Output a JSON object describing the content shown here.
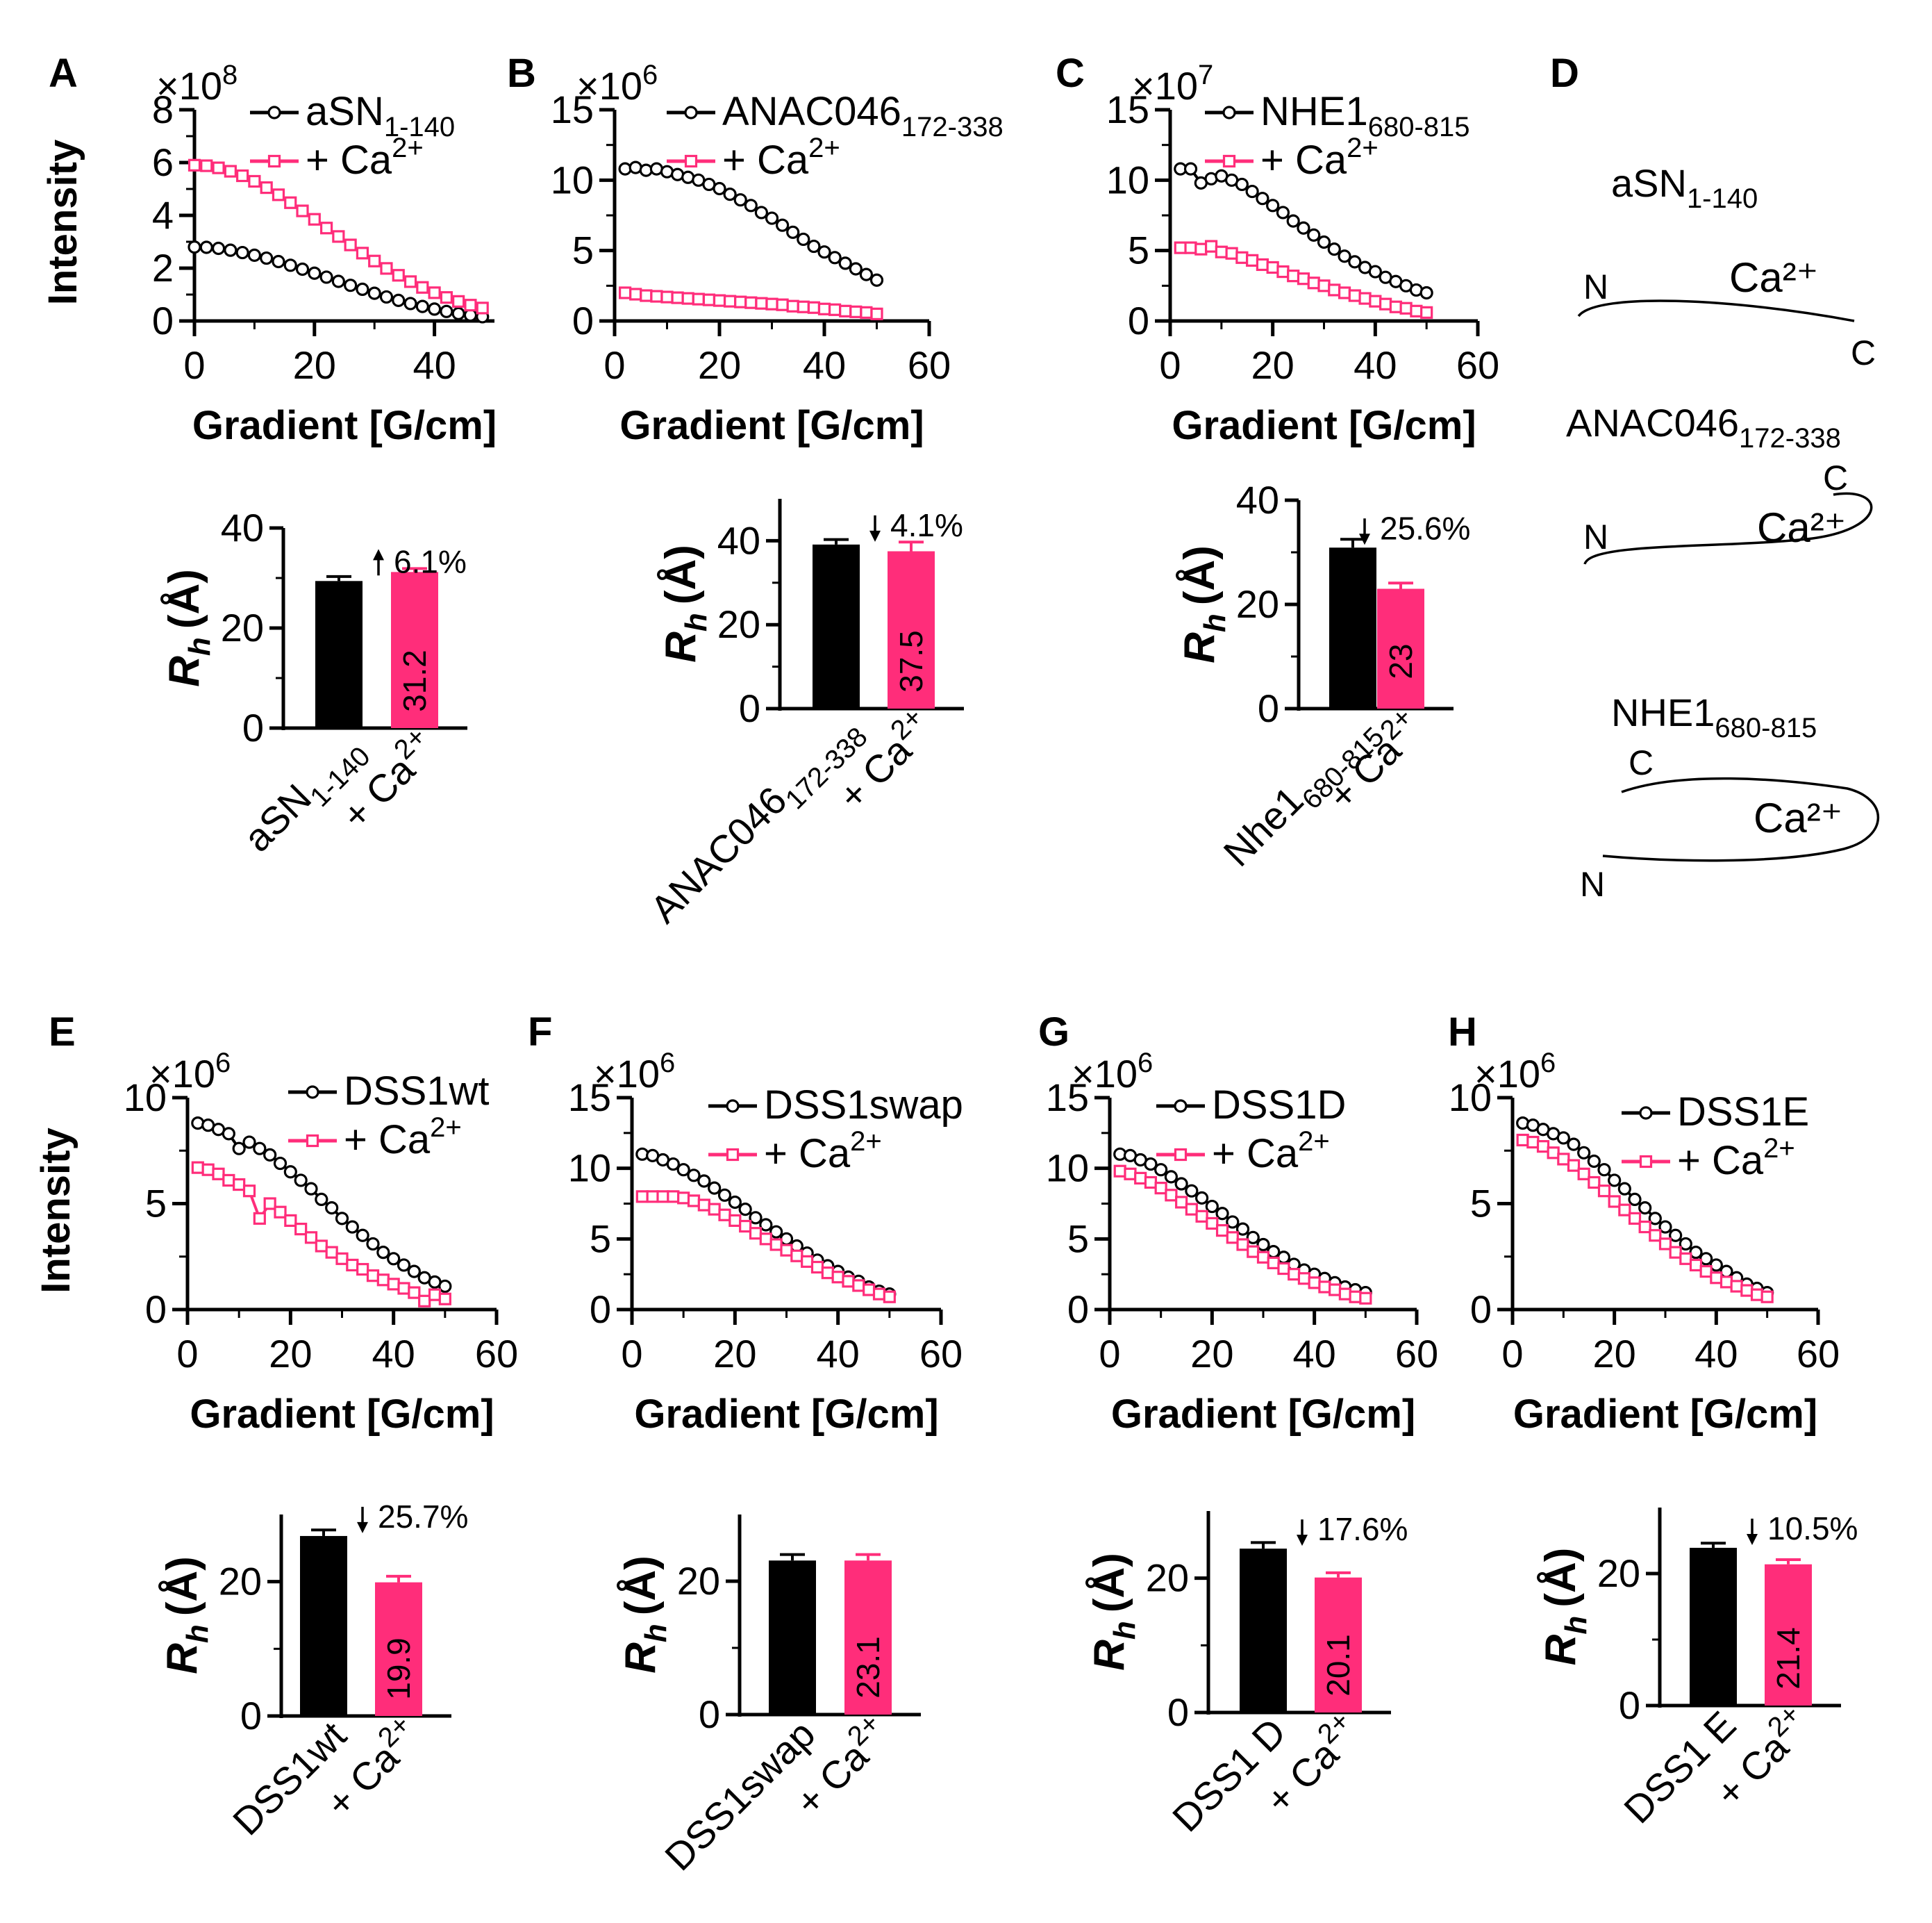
{
  "colors": {
    "control": "#000000",
    "calcium": "#ff2d7a"
  },
  "chart_data": [
    {
      "panel": "A",
      "type": "scatter",
      "xlabel": "Gradient [G/cm]",
      "ylabel": "Intensity",
      "exponent": "×10",
      "exponent_power": "8",
      "xlim": [
        0,
        50
      ],
      "ylim": [
        0,
        8
      ],
      "xticks": [
        "0",
        "20",
        "40"
      ],
      "yticks": [
        "0",
        "2",
        "4",
        "6",
        "8"
      ],
      "x": [
        0,
        2,
        4,
        6,
        8,
        10,
        12,
        14,
        16,
        18,
        20,
        22,
        24,
        26,
        28,
        30,
        32,
        34,
        36,
        38,
        40,
        42,
        44,
        46,
        48
      ],
      "series": [
        {
          "name": "aSN",
          "name_sub": "1-140",
          "values": [
            2.8,
            2.79,
            2.75,
            2.68,
            2.59,
            2.49,
            2.38,
            2.25,
            2.11,
            1.96,
            1.81,
            1.66,
            1.5,
            1.35,
            1.2,
            1.05,
            0.91,
            0.78,
            0.66,
            0.55,
            0.45,
            0.36,
            0.28,
            0.22,
            0.16
          ]
        },
        {
          "name": "+ Ca",
          "name_sup": "2+",
          "values": [
            5.9,
            5.88,
            5.8,
            5.67,
            5.5,
            5.29,
            5.05,
            4.78,
            4.48,
            4.17,
            3.85,
            3.52,
            3.2,
            2.88,
            2.57,
            2.27,
            1.99,
            1.73,
            1.49,
            1.27,
            1.07,
            0.89,
            0.74,
            0.6,
            0.49
          ]
        }
      ]
    },
    {
      "panel": "B",
      "type": "scatter",
      "xlabel": "Gradient [G/cm]",
      "ylabel": "",
      "exponent": "×10",
      "exponent_power": "6",
      "xlim": [
        0,
        60
      ],
      "ylim": [
        0,
        15
      ],
      "xticks": [
        "0",
        "20",
        "40",
        "60"
      ],
      "yticks": [
        "0",
        "5",
        "10",
        "15"
      ],
      "x": [
        2,
        4,
        6,
        8,
        10,
        12,
        14,
        16,
        18,
        20,
        22,
        24,
        26,
        28,
        30,
        32,
        34,
        36,
        38,
        40,
        42,
        44,
        46,
        48,
        50
      ],
      "series": [
        {
          "name": "ANAC046",
          "name_sub": "172-338",
          "values": [
            10.8,
            10.9,
            10.7,
            10.8,
            10.6,
            10.4,
            10.2,
            10,
            9.7,
            9.4,
            9,
            8.6,
            8.2,
            7.7,
            7.3,
            6.8,
            6.3,
            5.8,
            5.3,
            4.9,
            4.5,
            4.1,
            3.7,
            3.3,
            2.9
          ]
        },
        {
          "name": "+ Ca",
          "name_sup": "2+",
          "values": [
            2,
            1.9,
            1.8,
            1.75,
            1.7,
            1.65,
            1.6,
            1.55,
            1.5,
            1.45,
            1.4,
            1.35,
            1.3,
            1.25,
            1.2,
            1.15,
            1.05,
            1,
            0.95,
            0.85,
            0.8,
            0.7,
            0.65,
            0.6,
            0.5
          ]
        }
      ]
    },
    {
      "panel": "C",
      "type": "scatter",
      "xlabel": "Gradient [G/cm]",
      "ylabel": "",
      "exponent": "×10",
      "exponent_power": "7",
      "xlim": [
        0,
        60
      ],
      "ylim": [
        0,
        15
      ],
      "xticks": [
        "0",
        "20",
        "40",
        "60"
      ],
      "yticks": [
        "0",
        "5",
        "10",
        "15"
      ],
      "x": [
        2,
        4,
        6,
        8,
        10,
        12,
        14,
        16,
        18,
        20,
        22,
        24,
        26,
        28,
        30,
        32,
        34,
        36,
        38,
        40,
        42,
        44,
        46,
        48,
        50
      ],
      "series": [
        {
          "name": "NHE1",
          "name_sub": "680-815",
          "values": [
            10.8,
            10.8,
            9.8,
            10.1,
            10.3,
            10,
            9.7,
            9.2,
            8.7,
            8.2,
            7.7,
            7.1,
            6.6,
            6.1,
            5.6,
            5.1,
            4.6,
            4.2,
            3.8,
            3.5,
            3.1,
            2.8,
            2.5,
            2.2,
            2
          ]
        },
        {
          "name": "+ Ca",
          "name_sup": "2+",
          "values": [
            5.2,
            5.2,
            5.1,
            5.3,
            4.9,
            4.8,
            4.5,
            4.3,
            4,
            3.8,
            3.5,
            3.2,
            3,
            2.7,
            2.5,
            2.2,
            2,
            1.8,
            1.6,
            1.4,
            1.2,
            1,
            0.9,
            0.7,
            0.6
          ]
        }
      ]
    },
    {
      "panel": "E",
      "type": "scatter",
      "xlabel": "Gradient [G/cm]",
      "ylabel": "Intensity",
      "exponent": "×10",
      "exponent_power": "6",
      "xlim": [
        0,
        60
      ],
      "ylim": [
        0,
        10
      ],
      "xticks": [
        "0",
        "20",
        "40",
        "60"
      ],
      "yticks": [
        "0",
        "5",
        "10"
      ],
      "x": [
        2,
        4,
        6,
        8,
        10,
        12,
        14,
        16,
        18,
        20,
        22,
        24,
        26,
        28,
        30,
        32,
        34,
        36,
        38,
        40,
        42,
        44,
        46,
        48,
        50
      ],
      "series": [
        {
          "name": "DSS1wt",
          "values": [
            8.8,
            8.7,
            8.5,
            8.3,
            7.6,
            7.9,
            7.6,
            7.3,
            6.9,
            6.5,
            6.1,
            5.7,
            5.2,
            4.8,
            4.3,
            3.9,
            3.5,
            3.1,
            2.7,
            2.4,
            2.1,
            1.8,
            1.5,
            1.3,
            1.1
          ]
        },
        {
          "name": "+ Ca",
          "name_sup": "2+",
          "values": [
            6.7,
            6.6,
            6.4,
            6.1,
            5.9,
            5.6,
            4.3,
            5,
            4.6,
            4.2,
            3.8,
            3.4,
            3,
            2.7,
            2.4,
            2.1,
            1.9,
            1.6,
            1.4,
            1.2,
            1,
            0.8,
            0.4,
            0.7,
            0.5
          ]
        }
      ]
    },
    {
      "panel": "F",
      "type": "scatter",
      "xlabel": "Gradient [G/cm]",
      "ylabel": "",
      "exponent": "×10",
      "exponent_power": "6",
      "xlim": [
        0,
        60
      ],
      "ylim": [
        0,
        15
      ],
      "xticks": [
        "0",
        "20",
        "40",
        "60"
      ],
      "yticks": [
        "0",
        "5",
        "10",
        "15"
      ],
      "x": [
        2,
        4,
        6,
        8,
        10,
        12,
        14,
        16,
        18,
        20,
        22,
        24,
        26,
        28,
        30,
        32,
        34,
        36,
        38,
        40,
        42,
        44,
        46,
        48,
        50
      ],
      "series": [
        {
          "name": "DSS1swap",
          "values": [
            11,
            10.9,
            10.6,
            10.3,
            9.9,
            9.5,
            9.1,
            8.6,
            8.1,
            7.6,
            7.1,
            6.5,
            6,
            5.5,
            5,
            4.5,
            4,
            3.5,
            3.1,
            2.7,
            2.3,
            2,
            1.6,
            1.3,
            1.1
          ]
        },
        {
          "name": "+ Ca",
          "name_sup": "2+",
          "values": [
            8,
            8,
            8,
            8,
            7.9,
            7.7,
            7.4,
            7.1,
            6.7,
            6.3,
            5.9,
            5.4,
            5,
            4.6,
            4.2,
            3.8,
            3.4,
            3,
            2.6,
            2.3,
            2,
            1.7,
            1.4,
            1.1,
            0.9
          ]
        }
      ]
    },
    {
      "panel": "G",
      "type": "scatter",
      "xlabel": "Gradient [G/cm]",
      "ylabel": "",
      "exponent": "×10",
      "exponent_power": "6",
      "xlim": [
        0,
        60
      ],
      "ylim": [
        0,
        15
      ],
      "xticks": [
        "0",
        "20",
        "40",
        "60"
      ],
      "yticks": [
        "0",
        "5",
        "10",
        "15"
      ],
      "x": [
        2,
        4,
        6,
        8,
        10,
        12,
        14,
        16,
        18,
        20,
        22,
        24,
        26,
        28,
        30,
        32,
        34,
        36,
        38,
        40,
        42,
        44,
        46,
        48,
        50
      ],
      "series": [
        {
          "name": "DSS1D",
          "values": [
            11,
            10.9,
            10.6,
            10.3,
            9.9,
            9.4,
            8.9,
            8.4,
            7.9,
            7.3,
            6.8,
            6.2,
            5.7,
            5.1,
            4.6,
            4.1,
            3.7,
            3.2,
            2.8,
            2.5,
            2.2,
            1.9,
            1.6,
            1.4,
            1.2
          ]
        },
        {
          "name": "+ Ca",
          "name_sup": "2+",
          "values": [
            9.8,
            9.6,
            9.3,
            9,
            8.6,
            8.1,
            7.6,
            7.1,
            6.6,
            6.1,
            5.6,
            5.1,
            4.6,
            4.1,
            3.7,
            3.3,
            2.9,
            2.5,
            2.2,
            1.9,
            1.6,
            1.4,
            1.1,
            0.9,
            0.8
          ]
        }
      ]
    },
    {
      "panel": "H",
      "type": "scatter",
      "xlabel": "Gradient [G/cm]",
      "ylabel": "",
      "exponent": "×10",
      "exponent_power": "6",
      "xlim": [
        0,
        60
      ],
      "ylim": [
        0,
        10
      ],
      "xticks": [
        "0",
        "20",
        "40",
        "60"
      ],
      "yticks": [
        "0",
        "5",
        "10"
      ],
      "x": [
        2,
        4,
        6,
        8,
        10,
        12,
        14,
        16,
        18,
        20,
        22,
        24,
        26,
        28,
        30,
        32,
        34,
        36,
        38,
        40,
        42,
        44,
        46,
        48,
        50
      ],
      "series": [
        {
          "name": "DSS1E",
          "values": [
            8.8,
            8.7,
            8.5,
            8.3,
            8.1,
            7.8,
            7.4,
            7,
            6.6,
            6.1,
            5.7,
            5.2,
            4.8,
            4.3,
            3.9,
            3.5,
            3.1,
            2.7,
            2.4,
            2.1,
            1.8,
            1.5,
            1.2,
            1,
            0.8
          ]
        },
        {
          "name": "+ Ca",
          "name_sup": "2+",
          "values": [
            8,
            7.9,
            7.7,
            7.4,
            7.1,
            6.8,
            6.4,
            6,
            5.6,
            5.1,
            4.7,
            4.3,
            3.9,
            3.5,
            3.1,
            2.7,
            2.4,
            2.1,
            1.8,
            1.5,
            1.3,
            1.1,
            0.9,
            0.7,
            0.6
          ]
        }
      ]
    },
    {
      "panel": "A-bar",
      "type": "bar",
      "ylabel": "R",
      "ylabel_sub": "h",
      "ylabel_unit": "(Å)",
      "ylim": [
        0,
        40
      ],
      "yticks": [
        "0",
        "20",
        "40"
      ],
      "categories": [
        {
          "main": "aSN",
          "sub": "1-140"
        },
        {
          "main": "+ Ca",
          "sup": "2+"
        }
      ],
      "values": [
        29.4,
        31.2
      ],
      "errors": [
        0.9,
        0.7
      ],
      "change": "6.1%",
      "direction": "up"
    },
    {
      "panel": "B-bar",
      "type": "bar",
      "ylabel": "R",
      "ylabel_sub": "h",
      "ylabel_unit": "(Å)",
      "ylim": [
        0,
        50
      ],
      "yticks": [
        "0",
        "20",
        "40"
      ],
      "categories": [
        {
          "main": "ANAC046",
          "sub": "172-338"
        },
        {
          "main": "+ Ca",
          "sup": "2+"
        }
      ],
      "values": [
        39.1,
        37.5
      ],
      "errors": [
        1.2,
        2.2
      ],
      "change": "4.1%",
      "direction": "down"
    },
    {
      "panel": "C-bar",
      "type": "bar",
      "ylabel": "R",
      "ylabel_sub": "h",
      "ylabel_unit": "(Å)",
      "ylim": [
        0,
        40
      ],
      "yticks": [
        "0",
        "20",
        "40"
      ],
      "categories": [
        {
          "main": "Nhe1",
          "sub": "680-815"
        },
        {
          "main": "+ Ca",
          "sup": "2+"
        }
      ],
      "values": [
        30.9,
        23.0
      ],
      "errors": [
        1.6,
        1.1
      ],
      "change": "25.6%",
      "direction": "down"
    },
    {
      "panel": "E-bar",
      "type": "bar",
      "ylabel": "R",
      "ylabel_sub": "h",
      "ylabel_unit": "(Å)",
      "ylim": [
        0,
        30
      ],
      "yticks": [
        "0",
        "20"
      ],
      "categories": [
        {
          "main": "DSS1wt"
        },
        {
          "main": "+ Ca",
          "sup": "2+"
        }
      ],
      "values": [
        26.8,
        19.9
      ],
      "errors": [
        0.9,
        0.9
      ],
      "change": "25.7%",
      "direction": "down"
    },
    {
      "panel": "F-bar",
      "type": "bar",
      "ylabel": "R",
      "ylabel_sub": "h",
      "ylabel_unit": "(Å)",
      "ylim": [
        0,
        30
      ],
      "yticks": [
        "0",
        "20"
      ],
      "categories": [
        {
          "main": "DSS1swap"
        },
        {
          "main": "+ Ca",
          "sup": "2+"
        }
      ],
      "values": [
        23.1,
        23.1
      ],
      "errors": [
        0.9,
        0.9
      ],
      "change": "",
      "direction": ""
    },
    {
      "panel": "G-bar",
      "type": "bar",
      "ylabel": "R",
      "ylabel_sub": "h",
      "ylabel_unit": "(Å)",
      "ylim": [
        0,
        30
      ],
      "yticks": [
        "0",
        "20"
      ],
      "categories": [
        {
          "main": "DSS1 D"
        },
        {
          "main": "+ Ca",
          "sup": "2+"
        }
      ],
      "values": [
        24.4,
        20.1
      ],
      "errors": [
        0.9,
        0.7
      ],
      "change": "17.6%",
      "direction": "down"
    },
    {
      "panel": "H-bar",
      "type": "bar",
      "ylabel": "R",
      "ylabel_sub": "h",
      "ylabel_unit": "(Å)",
      "ylim": [
        0,
        30
      ],
      "yticks": [
        "0",
        "20"
      ],
      "categories": [
        {
          "main": "DSS1 E"
        },
        {
          "main": "+ Ca",
          "sup": "2+"
        }
      ],
      "values": [
        23.9,
        21.4
      ],
      "errors": [
        0.7,
        0.7
      ],
      "change": "10.5%",
      "direction": "down"
    }
  ],
  "panel_d": {
    "letter": "D",
    "constructs": [
      {
        "main": "aSN",
        "sub": "1-140",
        "ion": "Ca²⁺",
        "n": "N",
        "c": "C"
      },
      {
        "main": "ANAC046",
        "sub": "172-338",
        "ion": "Ca²⁺",
        "n": "N",
        "c": "C"
      },
      {
        "main": "NHE1",
        "sub": "680-815",
        "ion": "Ca²⁺",
        "n": "N",
        "c": "C"
      }
    ]
  }
}
